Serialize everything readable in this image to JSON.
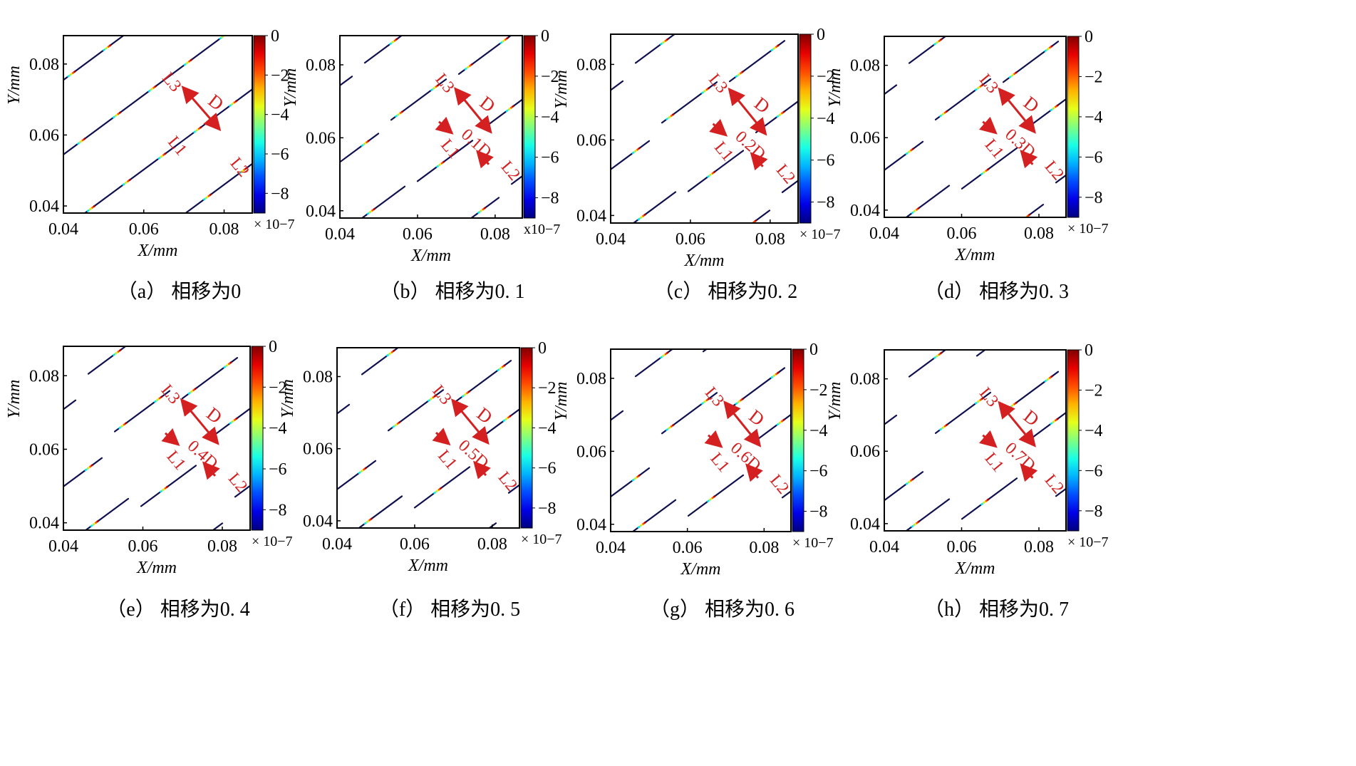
{
  "chart_data": [
    {
      "type": "line",
      "caption": "（a）  相移为0",
      "xlabel": "X/mm",
      "ylabel": "Y/mm",
      "xlim": [
        0.04,
        0.087
      ],
      "ylim": [
        0.038,
        0.088
      ],
      "xticks": [
        "0.04",
        "0.06",
        "0.08"
      ],
      "yticks": [
        "0.04",
        "0.06",
        "0.08"
      ],
      "phase_shift": 0,
      "annotations": [
        "L3",
        "L1",
        "L2",
        "D"
      ],
      "colorbar": {
        "ticks": [
          "0",
          "−2",
          "−4",
          "−6",
          "−8"
        ],
        "exponent": "× 10−7",
        "range": [
          -9,
          0
        ],
        "colormap": "jet"
      }
    },
    {
      "type": "line",
      "caption": "（b）  相移为0. 1",
      "xlabel": "X/mm",
      "ylabel": "Y/mm",
      "xlim": [
        0.04,
        0.087
      ],
      "ylim": [
        0.038,
        0.088
      ],
      "xticks": [
        "0.04",
        "0.06",
        "0.08"
      ],
      "yticks": [
        "0.04",
        "0.06",
        "0.08"
      ],
      "phase_shift": 0.1,
      "annotations": [
        "L3",
        "L1",
        "L2",
        "D",
        "0.1D"
      ],
      "colorbar": {
        "ticks": [
          "0",
          "−2",
          "−4",
          "−6",
          "−8"
        ],
        "exponent": "x10−7",
        "range": [
          -9,
          0
        ],
        "colormap": "jet"
      }
    },
    {
      "type": "line",
      "caption": "（c）  相移为0. 2",
      "xlabel": "X/mm",
      "ylabel": "Y/mm",
      "xlim": [
        0.04,
        0.087
      ],
      "ylim": [
        0.038,
        0.088
      ],
      "xticks": [
        "0.04",
        "0.06",
        "0.08"
      ],
      "yticks": [
        "0.04",
        "0.06",
        "0.08"
      ],
      "phase_shift": 0.2,
      "annotations": [
        "L3",
        "L1",
        "L2",
        "D",
        "0.2D"
      ],
      "colorbar": {
        "ticks": [
          "0",
          "−2",
          "−4",
          "−6",
          "−8"
        ],
        "exponent": "× 10−7",
        "range": [
          -9,
          0
        ],
        "colormap": "jet"
      }
    },
    {
      "type": "line",
      "caption": "（d）  相移为0. 3",
      "xlabel": "X/mm",
      "ylabel": "Y/mm",
      "xlim": [
        0.04,
        0.087
      ],
      "ylim": [
        0.038,
        0.088
      ],
      "xticks": [
        "0.04",
        "0.06",
        "0.08"
      ],
      "yticks": [
        "0.04",
        "0.06",
        "0.08"
      ],
      "phase_shift": 0.3,
      "annotations": [
        "L3",
        "L1",
        "L2",
        "D",
        "0.3D"
      ],
      "colorbar": {
        "ticks": [
          "0",
          "−2",
          "−4",
          "−6",
          "−8"
        ],
        "exponent": "× 10−7",
        "range": [
          -9,
          0
        ],
        "colormap": "jet"
      }
    },
    {
      "type": "line",
      "caption": "（e）  相移为0. 4",
      "xlabel": "X/mm",
      "ylabel": "Y/mm",
      "xlim": [
        0.04,
        0.087
      ],
      "ylim": [
        0.038,
        0.088
      ],
      "xticks": [
        "0.04",
        "0.06",
        "0.08"
      ],
      "yticks": [
        "0.04",
        "0.06",
        "0.08"
      ],
      "phase_shift": 0.4,
      "annotations": [
        "L3",
        "L1",
        "L2",
        "D",
        "0.4D"
      ],
      "colorbar": {
        "ticks": [
          "0",
          "−2",
          "−4",
          "−6",
          "−8"
        ],
        "exponent": "× 10−7",
        "range": [
          -9,
          0
        ],
        "colormap": "jet"
      }
    },
    {
      "type": "line",
      "caption": "（f）  相移为0. 5",
      "xlabel": "X/mm",
      "ylabel": "Y/mm",
      "xlim": [
        0.04,
        0.087
      ],
      "ylim": [
        0.038,
        0.088
      ],
      "xticks": [
        "0.04",
        "0.06",
        "0.08"
      ],
      "yticks": [
        "0.04",
        "0.06",
        "0.08"
      ],
      "phase_shift": 0.5,
      "annotations": [
        "L3",
        "L1",
        "L2",
        "D",
        "0.5D"
      ],
      "colorbar": {
        "ticks": [
          "0",
          "−2",
          "−4",
          "−6",
          "−8"
        ],
        "exponent": "× 10−7",
        "range": [
          -9,
          0
        ],
        "colormap": "jet"
      }
    },
    {
      "type": "line",
      "caption": "（g）  相移为0. 6",
      "xlabel": "X/mm",
      "ylabel": "Y/mm",
      "xlim": [
        0.04,
        0.087
      ],
      "ylim": [
        0.038,
        0.088
      ],
      "xticks": [
        "0.04",
        "0.06",
        "0.08"
      ],
      "yticks": [
        "0.04",
        "0.06",
        "0.08"
      ],
      "phase_shift": 0.6,
      "annotations": [
        "L3",
        "L1",
        "L2",
        "D",
        "0.6D"
      ],
      "colorbar": {
        "ticks": [
          "0",
          "−2",
          "−4",
          "−6",
          "−8"
        ],
        "exponent": "× 10−7",
        "range": [
          -9,
          0
        ],
        "colormap": "jet"
      }
    },
    {
      "type": "line",
      "caption": "（h）  相移为0. 7",
      "xlabel": "X/mm",
      "ylabel": "Y/mm",
      "xlim": [
        0.04,
        0.087
      ],
      "ylim": [
        0.038,
        0.088
      ],
      "xticks": [
        "0.04",
        "0.06",
        "0.08"
      ],
      "yticks": [
        "0.04",
        "0.06",
        "0.08"
      ],
      "phase_shift": 0.7,
      "annotations": [
        "L3",
        "L1",
        "L2",
        "D",
        "0.7D"
      ],
      "colorbar": {
        "ticks": [
          "0",
          "−2",
          "−4",
          "−6",
          "−8"
        ],
        "exponent": "× 10−7",
        "range": [
          -9,
          0
        ],
        "colormap": "jet"
      }
    }
  ],
  "colors": {
    "annotation": "#d42020",
    "frame": "#000000",
    "line_base": "#101050"
  }
}
